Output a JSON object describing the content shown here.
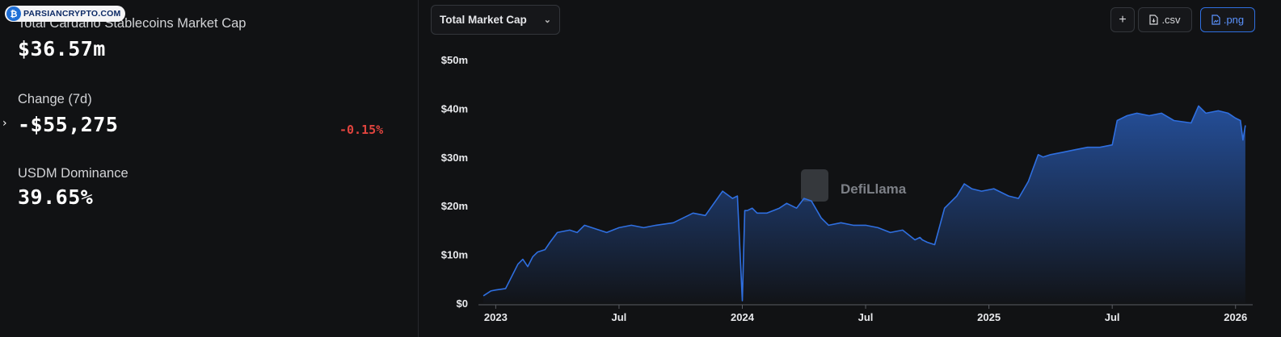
{
  "watermark": {
    "text": "PARSIANCRYPTO.COM"
  },
  "stats": {
    "market_cap_label": "Total Cardano Stablecoins Market Cap",
    "market_cap_value": "$36.57m",
    "change_label": "Change (7d)",
    "change_value": "-$55,275",
    "change_pct": "-0.15%",
    "dominance_label": "USDM Dominance",
    "dominance_value": "39.65%"
  },
  "toolbar": {
    "dropdown_label": "Total Market Cap",
    "add_label": "+",
    "csv_label": ".csv",
    "png_label": ".png"
  },
  "colors": {
    "background": "#111214",
    "line": "#2f6fe0",
    "negative": "#e0443e"
  },
  "chart_data": {
    "type": "area",
    "brand": "DefiLlama",
    "y_ticks": [
      "$0",
      "$10m",
      "$20m",
      "$30m",
      "$40m",
      "$50m"
    ],
    "x_ticks": [
      {
        "label": "2023",
        "t": 2023.0
      },
      {
        "label": "Jul",
        "t": 2023.5
      },
      {
        "label": "2024",
        "t": 2024.0
      },
      {
        "label": "Jul",
        "t": 2024.5
      },
      {
        "label": "2025",
        "t": 2025.0
      },
      {
        "label": "Jul",
        "t": 2025.5
      },
      {
        "label": "2026",
        "t": 2026.0
      }
    ],
    "ylim": [
      0,
      50
    ],
    "y_unit": "$m",
    "series": [
      {
        "x": [
          2022.95,
          2022.98,
          2023.0,
          2023.04,
          2023.06,
          2023.09,
          2023.11,
          2023.13,
          2023.15,
          2023.17,
          2023.2,
          2023.22,
          2023.25,
          2023.3,
          2023.33,
          2023.36,
          2023.42,
          2023.45,
          2023.5,
          2023.55,
          2023.6,
          2023.65,
          2023.72,
          2023.8,
          2023.85,
          2023.92,
          2023.96,
          2023.98,
          2024.0,
          2024.01,
          2024.02,
          2024.04,
          2024.06,
          2024.1,
          2024.15,
          2024.18,
          2024.22,
          2024.25,
          2024.28,
          2024.32,
          2024.35,
          2024.4,
          2024.45,
          2024.5,
          2024.55,
          2024.6,
          2024.65,
          2024.7,
          2024.72,
          2024.73,
          2024.75,
          2024.78,
          2024.82,
          2024.87,
          2024.9,
          2024.93,
          2024.97,
          2025.02,
          2025.08,
          2025.12,
          2025.16,
          2025.2,
          2025.22,
          2025.25,
          2025.3,
          2025.35,
          2025.4,
          2025.45,
          2025.5,
          2025.52,
          2025.56,
          2025.6,
          2025.65,
          2025.7,
          2025.75,
          2025.82,
          2025.85,
          2025.88,
          2025.93,
          2025.97,
          2026.0,
          2026.02,
          2026.03,
          2026.04
        ],
        "values": [
          1.5,
          2.5,
          2.7,
          3.0,
          5.0,
          8.0,
          9.0,
          7.5,
          9.5,
          10.5,
          11.0,
          12.5,
          14.5,
          15.0,
          14.5,
          16.0,
          15.0,
          14.5,
          15.5,
          16.0,
          15.5,
          16.0,
          16.5,
          18.5,
          18.0,
          23.0,
          21.5,
          22.0,
          0.5,
          19.0,
          19.0,
          19.5,
          18.5,
          18.5,
          19.5,
          20.5,
          19.5,
          21.5,
          21.0,
          17.5,
          16.0,
          16.5,
          16.0,
          16.0,
          15.5,
          14.5,
          15.0,
          13.0,
          13.5,
          13.0,
          12.5,
          12.0,
          19.5,
          22.0,
          24.5,
          23.5,
          23.0,
          23.5,
          22.0,
          21.5,
          25.0,
          30.5,
          30.0,
          30.5,
          31.0,
          31.5,
          32.0,
          32.0,
          32.5,
          37.5,
          38.5,
          39.0,
          38.5,
          39.0,
          37.5,
          37.0,
          40.5,
          39.0,
          39.5,
          39.0,
          38.0,
          37.5,
          33.5,
          36.5
        ]
      }
    ]
  }
}
